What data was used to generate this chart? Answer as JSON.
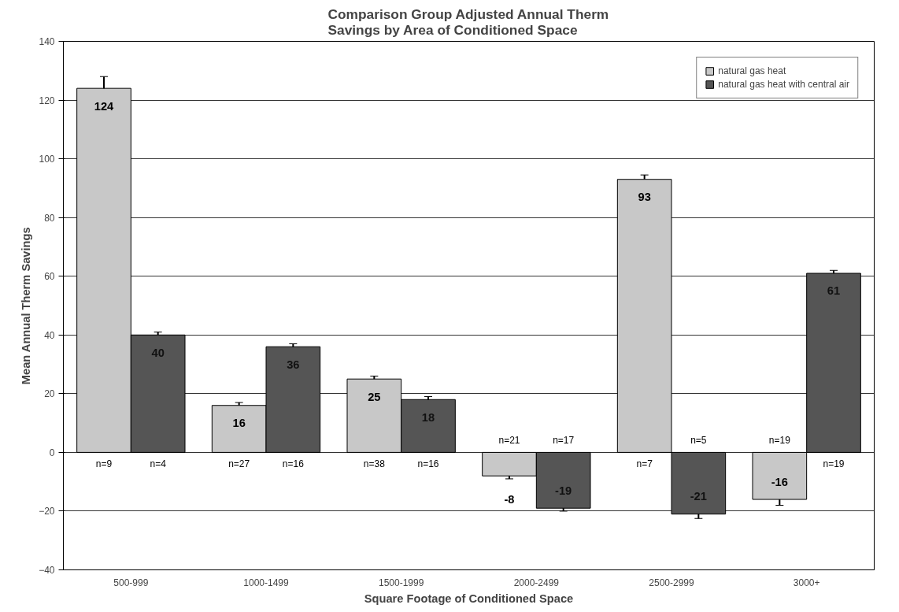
{
  "chart_data": {
    "type": "bar",
    "title": "Comparison Group Adjusted Annual Therm\nSavings by Area of Conditioned Space",
    "xlabel": "Square Footage of Conditioned Space",
    "ylabel": "Mean Annual Therm Savings",
    "categories": [
      "500-999",
      "1000-1499",
      "1500-1999",
      "2000-2499",
      "2500-2999",
      "3000+"
    ],
    "series": [
      {
        "name": "natural gas heat",
        "color": "#c8c8c8",
        "values": [
          124,
          16,
          25,
          -8,
          93,
          -16
        ],
        "errors": [
          4,
          1,
          1,
          1,
          1.5,
          2
        ]
      },
      {
        "name": "natural gas heat with central air",
        "color": "#555555",
        "values": [
          40,
          36,
          18,
          -19,
          -21,
          61
        ],
        "errors": [
          1,
          1,
          1,
          1,
          1.5,
          1
        ]
      }
    ],
    "ylim": [
      -40,
      140
    ],
    "yticks": [
      -40,
      -20,
      0,
      20,
      40,
      60,
      80,
      100,
      120,
      140
    ],
    "grid": "y",
    "legend": "top right",
    "data_labels": true,
    "annotations": [
      "n=9",
      "n=4",
      "n=27",
      "n=16",
      "n=38",
      "n=16",
      "n=21",
      "n=17",
      "n=7",
      "n=5",
      "n=19",
      "n=19"
    ]
  }
}
